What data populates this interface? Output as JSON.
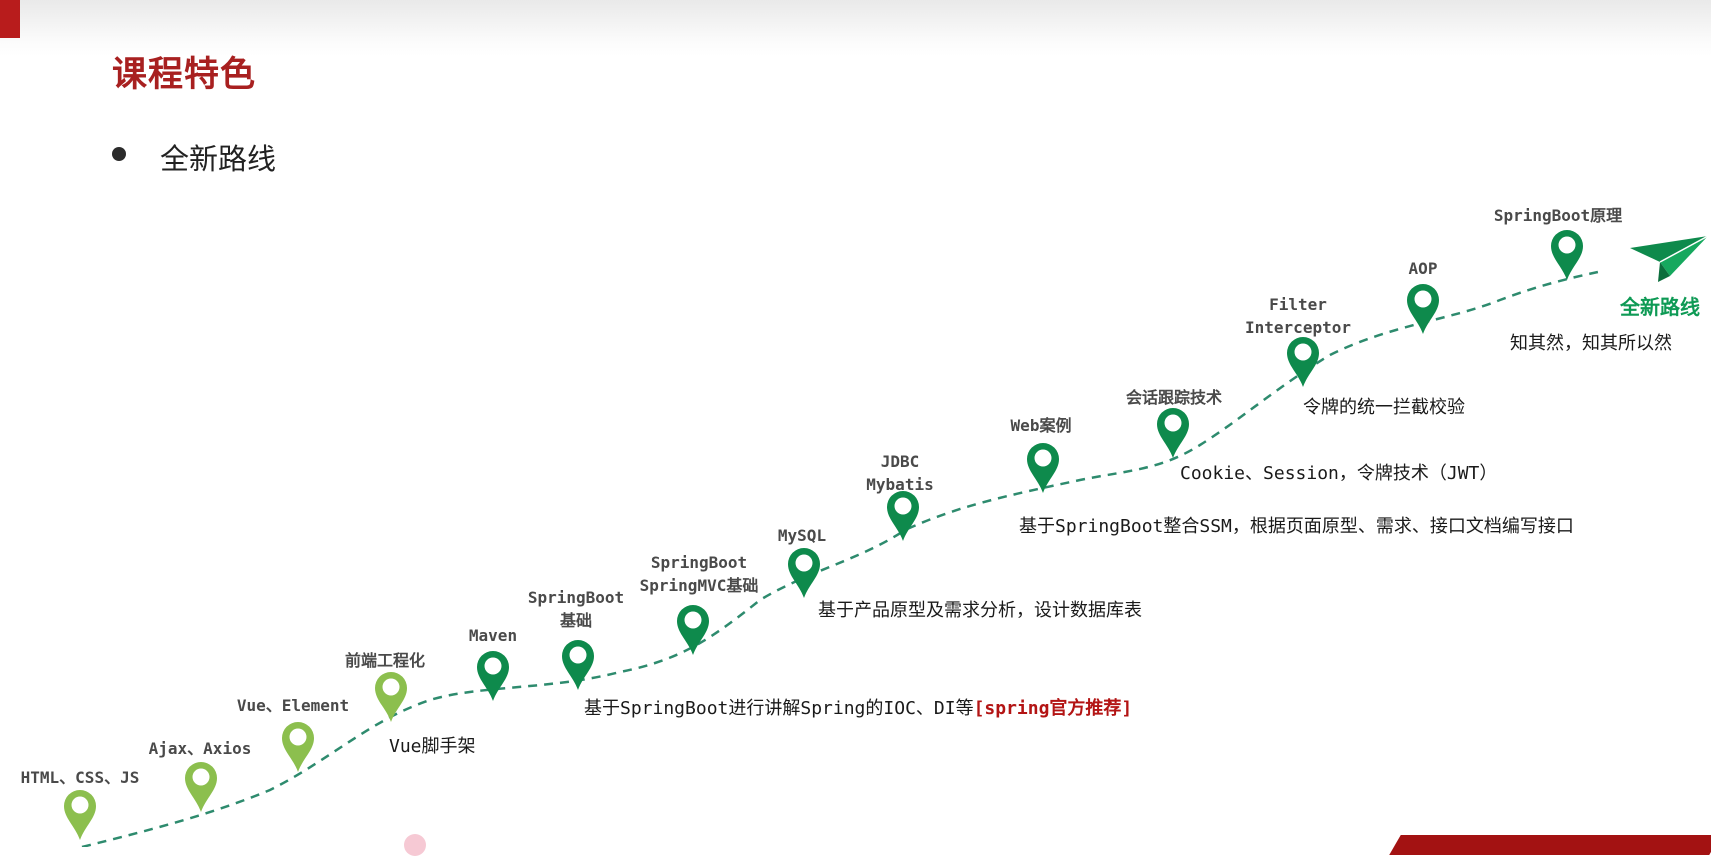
{
  "slide": {
    "title": "课程特色",
    "bullet": "全新路线"
  },
  "colors": {
    "title": "#a82020",
    "pin_light": "#8cbf4e",
    "pin_dark": "#0e8a4c",
    "path": "#2e8b6e",
    "accent_green": "#0e9a55",
    "highlight_red": "#b31414"
  },
  "stages": [
    {
      "lines": [
        "HTML、CSS、JS"
      ],
      "tone": "light"
    },
    {
      "lines": [
        "Ajax、Axios"
      ],
      "tone": "light"
    },
    {
      "lines": [
        "Vue、Element"
      ],
      "tone": "light"
    },
    {
      "lines": [
        "前端工程化"
      ],
      "tone": "light"
    },
    {
      "lines": [
        "Maven"
      ],
      "tone": "dark"
    },
    {
      "lines": [
        "SpringBoot",
        "基础"
      ],
      "tone": "dark"
    },
    {
      "lines": [
        "SpringBoot",
        "SpringMVC基础"
      ],
      "tone": "dark"
    },
    {
      "lines": [
        "MySQL"
      ],
      "tone": "dark"
    },
    {
      "lines": [
        "JDBC",
        "Mybatis"
      ],
      "tone": "dark"
    },
    {
      "lines": [
        "Web案例"
      ],
      "tone": "dark"
    },
    {
      "lines": [
        "会话跟踪技术"
      ],
      "tone": "dark"
    },
    {
      "lines": [
        "Filter",
        "Interceptor"
      ],
      "tone": "dark"
    },
    {
      "lines": [
        "AOP"
      ],
      "tone": "dark"
    },
    {
      "lines": [
        "SpringBoot原理"
      ],
      "tone": "dark"
    }
  ],
  "descriptions": [
    {
      "text": "Vue脚手架"
    },
    {
      "text": "基于SpringBoot进行讲解Spring的IOC、DI等",
      "highlight": "[spring官方推荐]"
    },
    {
      "text": "基于产品原型及需求分析，设计数据库表"
    },
    {
      "text": "基于SpringBoot整合SSM，根据页面原型、需求、接口文档编写接口"
    },
    {
      "text": "Cookie、Session，令牌技术（JWT）"
    },
    {
      "text": "令牌的统一拦截校验"
    }
  ],
  "route": {
    "name": "全新路线",
    "tagline": "知其然，知其所以然",
    "icon": "paper-plane-icon"
  }
}
